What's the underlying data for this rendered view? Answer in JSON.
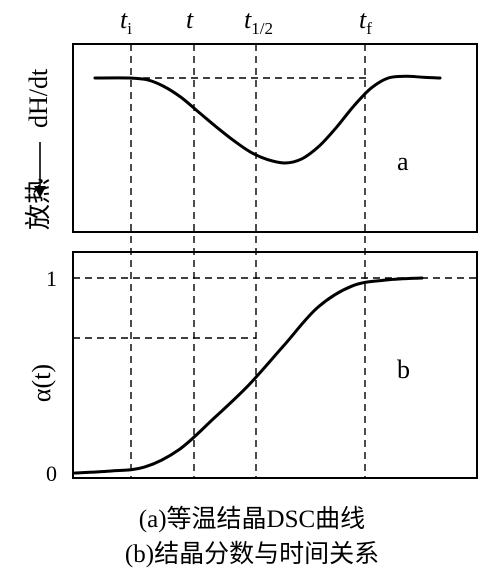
{
  "chart_data": [
    {
      "type": "line",
      "panel_label": "a",
      "ylabel_main": "dH/dt",
      "ylabel_sub": "放热",
      "time_marks": {
        "t_i": {
          "base": "t",
          "sub": "i"
        },
        "t": {
          "base": "t",
          "sub": ""
        },
        "t_half": {
          "base": "t",
          "sub": "1/2"
        },
        "t_f": {
          "base": "t",
          "sub": "f"
        }
      },
      "series": [
        {
          "x": [
            0.0,
            0.1,
            0.15,
            0.2,
            0.25,
            0.3,
            0.35,
            0.4,
            0.45,
            0.5,
            0.55,
            0.6,
            0.65,
            0.7,
            0.75,
            0.8,
            0.85,
            0.9,
            0.95,
            1.0
          ],
          "values": [
            1.0,
            1.0,
            0.98,
            0.9,
            0.77,
            0.6,
            0.43,
            0.27,
            0.13,
            0.04,
            0.0,
            0.05,
            0.2,
            0.42,
            0.67,
            0.88,
            1.0,
            1.02,
            1.01,
            1.0
          ]
        }
      ]
    },
    {
      "type": "line",
      "panel_label": "b",
      "ylabel": "α(t)",
      "yticks": [
        "1",
        "0"
      ],
      "series": [
        {
          "x": [
            0.0,
            0.1,
            0.2,
            0.3,
            0.4,
            0.5,
            0.6,
            0.7,
            0.8,
            0.9,
            1.0
          ],
          "values": [
            0.0,
            0.01,
            0.03,
            0.12,
            0.28,
            0.45,
            0.65,
            0.85,
            0.96,
            0.99,
            1.0
          ]
        }
      ]
    }
  ],
  "captions": {
    "line1": "(a)等温结晶DSC曲线",
    "line2": "(b)结晶分数与时间关系"
  }
}
